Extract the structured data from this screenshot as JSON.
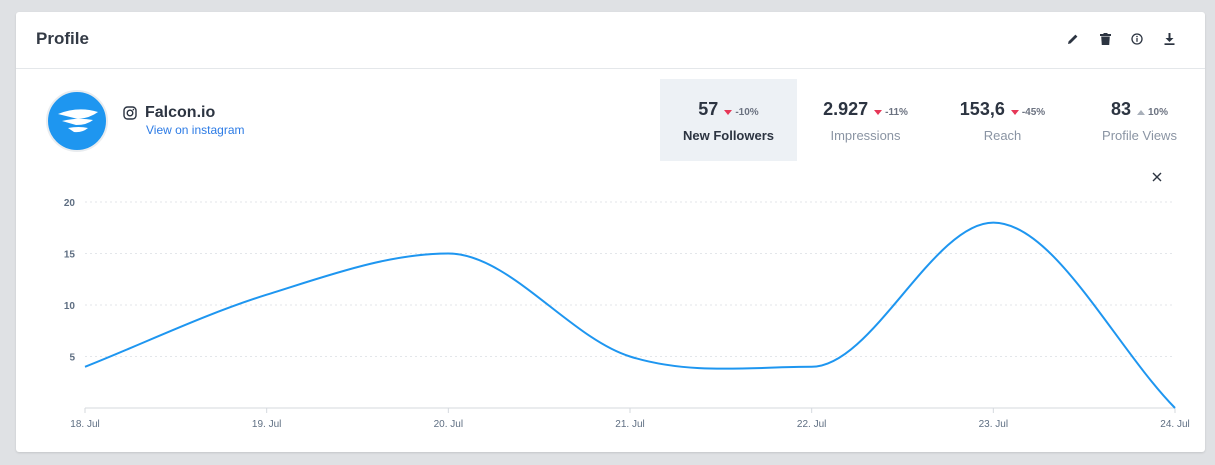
{
  "card": {
    "title": "Profile",
    "tools": [
      "pencil-icon",
      "trash-icon",
      "info-icon",
      "download-icon"
    ]
  },
  "profile": {
    "name": "Falcon.io",
    "link_text": "View on instagram",
    "network_icon": "instagram-icon",
    "avatar_color": "#1e96f0"
  },
  "stats": [
    {
      "value": "57",
      "change": "-10%",
      "direction": "down",
      "label": "New Followers",
      "active": true
    },
    {
      "value": "2.927",
      "change": "-11%",
      "direction": "down",
      "label": "Impressions",
      "active": false
    },
    {
      "value": "153,6",
      "change": "-45%",
      "direction": "down",
      "label": "Reach",
      "active": false
    },
    {
      "value": "83",
      "change": "10%",
      "direction": "up",
      "label": "Profile Views",
      "active": false
    }
  ],
  "chart_data": {
    "type": "line",
    "categories": [
      "18. Jul",
      "19. Jul",
      "20. Jul",
      "21. Jul",
      "22. Jul",
      "23. Jul",
      "24. Jul"
    ],
    "values": [
      4,
      11,
      15,
      5,
      4,
      18,
      0
    ],
    "y_ticks": [
      5,
      10,
      15,
      20
    ],
    "ylim": [
      0,
      20
    ],
    "grid": "horizontal-dotted",
    "line_color": "#1e96f0"
  }
}
